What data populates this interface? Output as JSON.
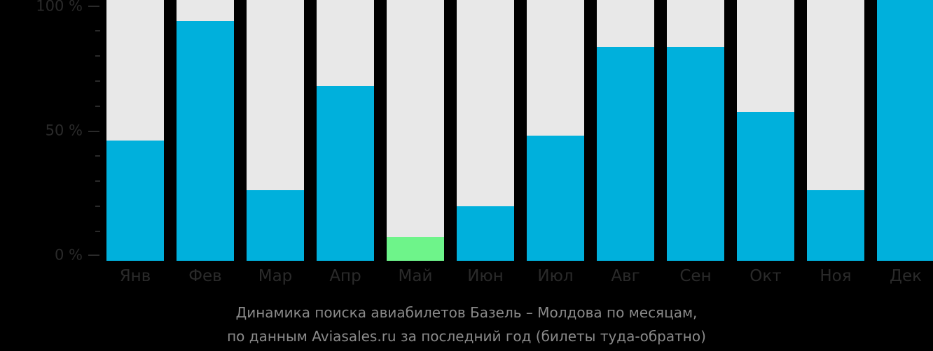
{
  "chart_data": {
    "type": "bar",
    "title": "Динамика поиска авиабилетов Базель – Молдова по месяцам, по данным Aviasales.ru за последний год (билеты туда-обратно)",
    "xlabel": "",
    "ylabel": "",
    "ylim": [
      0,
      100
    ],
    "yticks": [
      "0 %",
      "50 %",
      "100 %"
    ],
    "categories": [
      "Янв",
      "Фев",
      "Мар",
      "Апр",
      "Май",
      "Июн",
      "Июл",
      "Авг",
      "Сен",
      "Окт",
      "Ноя",
      "Дек"
    ],
    "values": [
      46,
      92,
      27,
      67,
      9,
      21,
      48,
      82,
      82,
      57,
      27,
      100
    ],
    "highlight_index": 4,
    "colors": {
      "bar": "#00b0dc",
      "highlight": "#6ef48a",
      "track": "#e8e8e8",
      "background": "#000000"
    },
    "grid": false,
    "legend": null
  },
  "axis": {
    "y_labels": [
      "100 %",
      "50 %",
      "0 %"
    ]
  },
  "caption": {
    "line1": "Динамика поиска авиабилетов Базель – Молдова по месяцам,",
    "line2": "по данным Aviasales.ru за последний год (билеты туда-обратно)"
  }
}
